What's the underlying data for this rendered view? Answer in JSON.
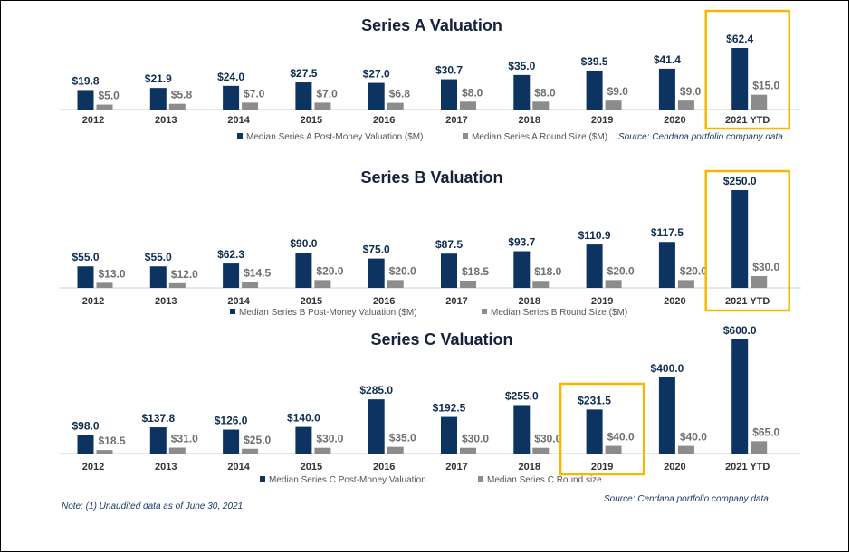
{
  "colors": {
    "valuation": "#0d3461",
    "round": "#8c8c8c",
    "highlight": "#f5b800"
  },
  "chart_data": [
    {
      "type": "bar",
      "title": "Series A Valuation",
      "categories": [
        "2012",
        "2013",
        "2014",
        "2015",
        "2016",
        "2017",
        "2018",
        "2019",
        "2020",
        "2021 YTD"
      ],
      "series": [
        {
          "name": "Median Series A Post-Money Valuation ($M)",
          "values": [
            19.8,
            21.9,
            24.0,
            27.5,
            27.0,
            30.7,
            35.0,
            39.5,
            41.4,
            62.4
          ],
          "labels": [
            "$19.8",
            "$21.9",
            "$24.0",
            "$27.5",
            "$27.0",
            "$30.7",
            "$35.0",
            "$39.5",
            "$41.4",
            "$62.4"
          ]
        },
        {
          "name": "Median Series A Round Size ($M)",
          "values": [
            5.0,
            5.8,
            7.0,
            7.0,
            6.8,
            8.0,
            8.0,
            9.0,
            9.0,
            15.0
          ],
          "labels": [
            "$5.0",
            "$5.8",
            "$7.0",
            "$7.0",
            "$6.8",
            "$8.0",
            "$8.0",
            "$9.0",
            "$9.0",
            "$15.0"
          ]
        }
      ],
      "highlight": "2021 YTD",
      "source": "Source:  Cendana portfolio company data"
    },
    {
      "type": "bar",
      "title": "Series B Valuation",
      "categories": [
        "2012",
        "2013",
        "2014",
        "2015",
        "2016",
        "2017",
        "2018",
        "2019",
        "2020",
        "2021 YTD"
      ],
      "series": [
        {
          "name": "Median Series B Post-Money Valuation ($M)",
          "values": [
            55.0,
            55.0,
            62.3,
            90.0,
            75.0,
            87.5,
            93.7,
            110.9,
            117.5,
            250.0
          ],
          "labels": [
            "$55.0",
            "$55.0",
            "$62.3",
            "$90.0",
            "$75.0",
            "$87.5",
            "$93.7",
            "$110.9",
            "$117.5",
            "$250.0"
          ]
        },
        {
          "name": "Median Series B Round Size ($M)",
          "values": [
            13.0,
            12.0,
            14.5,
            20.0,
            20.0,
            18.5,
            18.0,
            20.0,
            20.0,
            30.0
          ],
          "labels": [
            "$13.0",
            "$12.0",
            "$14.5",
            "$20.0",
            "$20.0",
            "$18.5",
            "$18.0",
            "$20.0",
            "$20.0",
            "$30.0"
          ]
        }
      ],
      "highlight": "2021 YTD"
    },
    {
      "type": "bar",
      "title": "Series C Valuation",
      "categories": [
        "2012",
        "2013",
        "2014",
        "2015",
        "2016",
        "2017",
        "2018",
        "2019",
        "2020",
        "2021 YTD"
      ],
      "series": [
        {
          "name": "Median Series C Post-Money Valuation",
          "values": [
            98.0,
            137.8,
            126.0,
            140.0,
            285.0,
            192.5,
            255.0,
            231.5,
            400.0,
            600.0
          ],
          "labels": [
            "$98.0",
            "$137.8",
            "$126.0",
            "$140.0",
            "$285.0",
            "$192.5",
            "$255.0",
            "$231.5",
            "$400.0",
            "$600.0"
          ]
        },
        {
          "name": "Median Series C Round size",
          "values": [
            18.5,
            31.0,
            25.0,
            30.0,
            35.0,
            30.0,
            30.0,
            40.0,
            40.0,
            65.0
          ],
          "labels": [
            "$18.5",
            "$31.0",
            "$25.0",
            "$30.0",
            "$35.0",
            "$30.0",
            "$30.0",
            "$40.0",
            "$40.0",
            "$65.0"
          ]
        }
      ],
      "highlight": "2019",
      "source": "Source:  Cendana portfolio company data"
    }
  ],
  "note": "Note:  (1) Unaudited data as of June 30, 2021"
}
